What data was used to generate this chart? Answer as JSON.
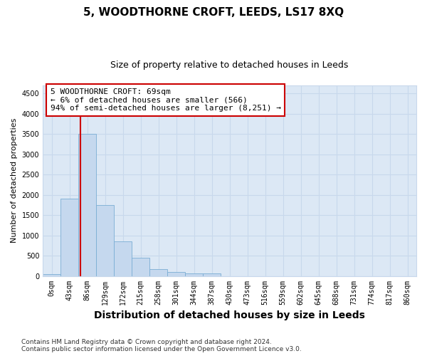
{
  "title": "5, WOODTHORNE CROFT, LEEDS, LS17 8XQ",
  "subtitle": "Size of property relative to detached houses in Leeds",
  "xlabel": "Distribution of detached houses by size in Leeds",
  "ylabel": "Number of detached properties",
  "categories": [
    "0sqm",
    "43sqm",
    "86sqm",
    "129sqm",
    "172sqm",
    "215sqm",
    "258sqm",
    "301sqm",
    "344sqm",
    "387sqm",
    "430sqm",
    "473sqm",
    "516sqm",
    "559sqm",
    "602sqm",
    "645sqm",
    "688sqm",
    "731sqm",
    "774sqm",
    "817sqm",
    "860sqm"
  ],
  "bar_heights": [
    50,
    1900,
    3500,
    1750,
    850,
    450,
    175,
    100,
    60,
    55,
    0,
    0,
    0,
    0,
    0,
    0,
    0,
    0,
    0,
    0,
    0
  ],
  "bar_color": "#c5d8ee",
  "bar_edge_color": "#7aadd4",
  "plot_bg_color": "#dce8f5",
  "ylim": [
    0,
    4700
  ],
  "yticks": [
    0,
    500,
    1000,
    1500,
    2000,
    2500,
    3000,
    3500,
    4000,
    4500
  ],
  "property_line_x": 1.6,
  "annotation_text_line1": "5 WOODTHORNE CROFT: 69sqm",
  "annotation_text_line2": "← 6% of detached houses are smaller (566)",
  "annotation_text_line3": "94% of semi-detached houses are larger (8,251) →",
  "annotation_box_color": "#ffffff",
  "annotation_box_edge": "#cc0000",
  "property_line_color": "#cc0000",
  "footer_line1": "Contains HM Land Registry data © Crown copyright and database right 2024.",
  "footer_line2": "Contains public sector information licensed under the Open Government Licence v3.0.",
  "background_color": "#ffffff",
  "grid_color": "#c8d8ec",
  "title_fontsize": 11,
  "subtitle_fontsize": 9,
  "ylabel_fontsize": 8,
  "xlabel_fontsize": 10,
  "tick_fontsize": 7,
  "annotation_fontsize": 8,
  "footer_fontsize": 6.5
}
